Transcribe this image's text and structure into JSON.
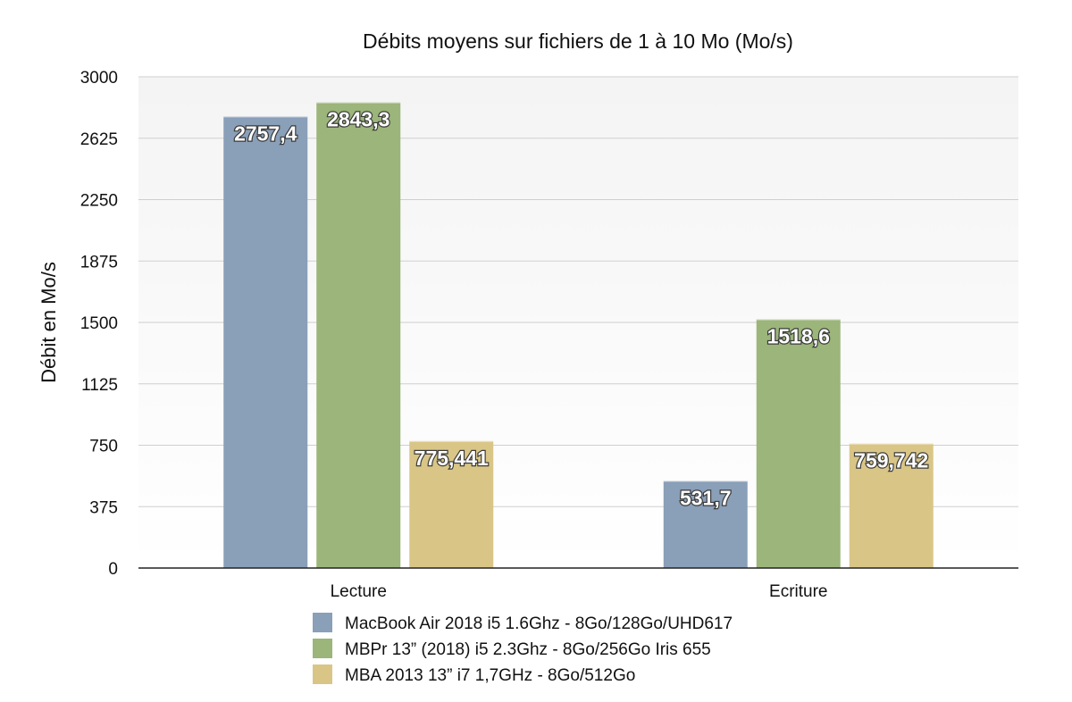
{
  "chart_data": {
    "type": "bar",
    "title": "Débits moyens sur fichiers de 1 à 10 Mo (Mo/s)",
    "ylabel": "Débit en Mo/s",
    "xlabel": "",
    "categories": [
      "Lecture",
      "Ecriture"
    ],
    "ylim": [
      0,
      3000
    ],
    "yticks": [
      0,
      375,
      750,
      1125,
      1500,
      1875,
      2250,
      2625,
      3000
    ],
    "grid": true,
    "legend_position": "bottom-center",
    "series": [
      {
        "name": "MacBook Air 2018 i5 1.6Ghz - 8Go/128Go/UHD617",
        "color": "#8a9fb8",
        "values": [
          2757.4,
          531.7
        ],
        "labels": [
          "2757,4",
          "531,7"
        ]
      },
      {
        "name": "MBPr 13” (2018) i5 2.3Ghz - 8Go/256Go Iris 655",
        "color": "#9bb57a",
        "values": [
          2843.3,
          1518.6
        ],
        "labels": [
          "2843,3",
          "1518,6"
        ]
      },
      {
        "name": "MBA 2013 13” i7 1,7GHz - 8Go/512Go",
        "color": "#d9c687",
        "values": [
          775.441,
          759.742
        ],
        "labels": [
          "775,441",
          "759,742"
        ]
      }
    ]
  }
}
